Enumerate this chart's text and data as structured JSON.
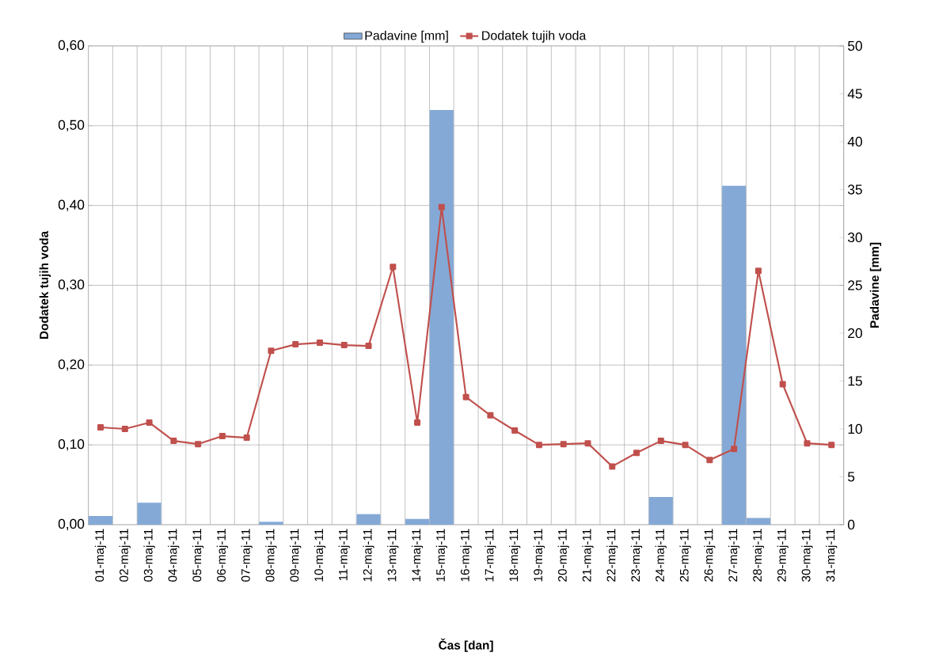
{
  "chart_data": {
    "type": "bar",
    "xlabel": "Čas [dan]",
    "ylabel": "Dodatek tujih voda",
    "y2label": "Padavine [mm]",
    "categories": [
      "01-maj-11",
      "02-maj-11",
      "03-maj-11",
      "04-maj-11",
      "05-maj-11",
      "06-maj-11",
      "07-maj-11",
      "08-maj-11",
      "09-maj-11",
      "10-maj-11",
      "11-maj-11",
      "12-maj-11",
      "13-maj-11",
      "14-maj-11",
      "15-maj-11",
      "16-maj-11",
      "17-maj-11",
      "18-maj-11",
      "19-maj-11",
      "20-maj-11",
      "21-maj-11",
      "22-maj-11",
      "23-maj-11",
      "24-maj-11",
      "25-maj-11",
      "26-maj-11",
      "27-maj-11",
      "28-maj-11",
      "29-maj-11",
      "30-maj-11",
      "31-maj-11"
    ],
    "series": [
      {
        "name": "Padavine [mm]",
        "axis": "y2",
        "color": "#84a9d6",
        "values": [
          0.9,
          0,
          2.3,
          0,
          0,
          0,
          0,
          0.3,
          0,
          0,
          0,
          1.1,
          0,
          0.6,
          43.3,
          0,
          0,
          0,
          0,
          0,
          0,
          0,
          0,
          2.9,
          0,
          0,
          35.4,
          0.7,
          0,
          0,
          0
        ]
      },
      {
        "name": "Dodatek tujih voda",
        "type": "line",
        "color": "#c0504d",
        "values": [
          0.122,
          0.12,
          0.128,
          0.105,
          0.101,
          0.111,
          0.109,
          0.218,
          0.226,
          0.228,
          0.225,
          0.224,
          0.323,
          0.128,
          0.398,
          0.16,
          0.137,
          0.118,
          0.1,
          0.101,
          0.102,
          0.073,
          0.09,
          0.105,
          0.1,
          0.081,
          0.095,
          0.318,
          0.176,
          0.102,
          0.1
        ]
      }
    ],
    "ylim": [
      0,
      0.6
    ],
    "yticks": [
      {
        "value": 0,
        "label": "0,00"
      },
      {
        "value": 0.1,
        "label": "0,10"
      },
      {
        "value": 0.2,
        "label": "0,20"
      },
      {
        "value": 0.3,
        "label": "0,30"
      },
      {
        "value": 0.4,
        "label": "0,40"
      },
      {
        "value": 0.5,
        "label": "0,50"
      },
      {
        "value": 0.6,
        "label": "0,60"
      }
    ],
    "y2lim": [
      0,
      50
    ],
    "y2ticks": [
      0,
      5,
      10,
      15,
      20,
      25,
      30,
      35,
      40,
      45,
      50
    ],
    "grid": true,
    "legend": "top",
    "marker": "square",
    "line_style": "solid"
  }
}
